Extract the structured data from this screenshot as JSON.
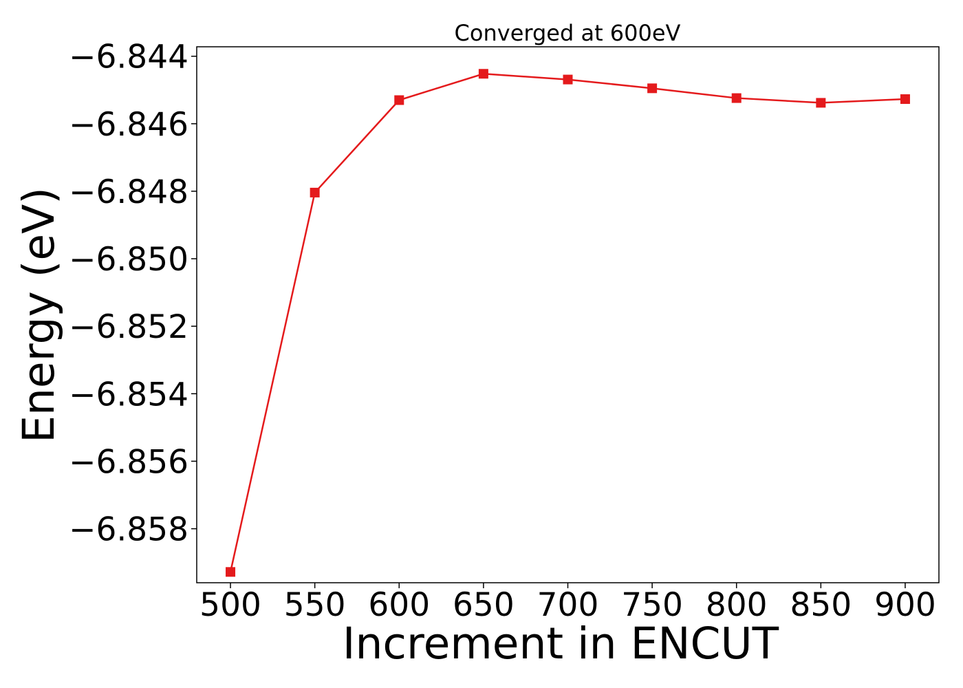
{
  "chart_data": {
    "type": "line",
    "title": "Converged at 600eV",
    "xlabel": "Increment in ENCUT",
    "ylabel": "Energy (eV)",
    "x": [
      500,
      550,
      600,
      650,
      700,
      750,
      800,
      850,
      900
    ],
    "series": [
      {
        "values": [
          -6.85928,
          -6.84804,
          -6.8453,
          -6.84452,
          -6.84469,
          -6.84495,
          -6.84524,
          -6.84538,
          -6.84527
        ],
        "color": "#e41a1c",
        "marker": "square"
      }
    ],
    "xlim": [
      480,
      920
    ],
    "ylim": [
      -6.8596,
      -6.84372
    ],
    "xticks": [
      500,
      550,
      600,
      650,
      700,
      750,
      800,
      850,
      900
    ],
    "xtick_labels": [
      "500",
      "550",
      "600",
      "650",
      "700",
      "750",
      "800",
      "850",
      "900"
    ],
    "yticks": [
      -6.844,
      -6.846,
      -6.848,
      -6.85,
      -6.852,
      -6.854,
      -6.856,
      -6.858
    ],
    "ytick_labels": [
      "−6.844",
      "−6.846",
      "−6.848",
      "−6.850",
      "−6.852",
      "−6.854",
      "−6.856",
      "−6.858"
    ],
    "grid": false,
    "legend": false
  }
}
